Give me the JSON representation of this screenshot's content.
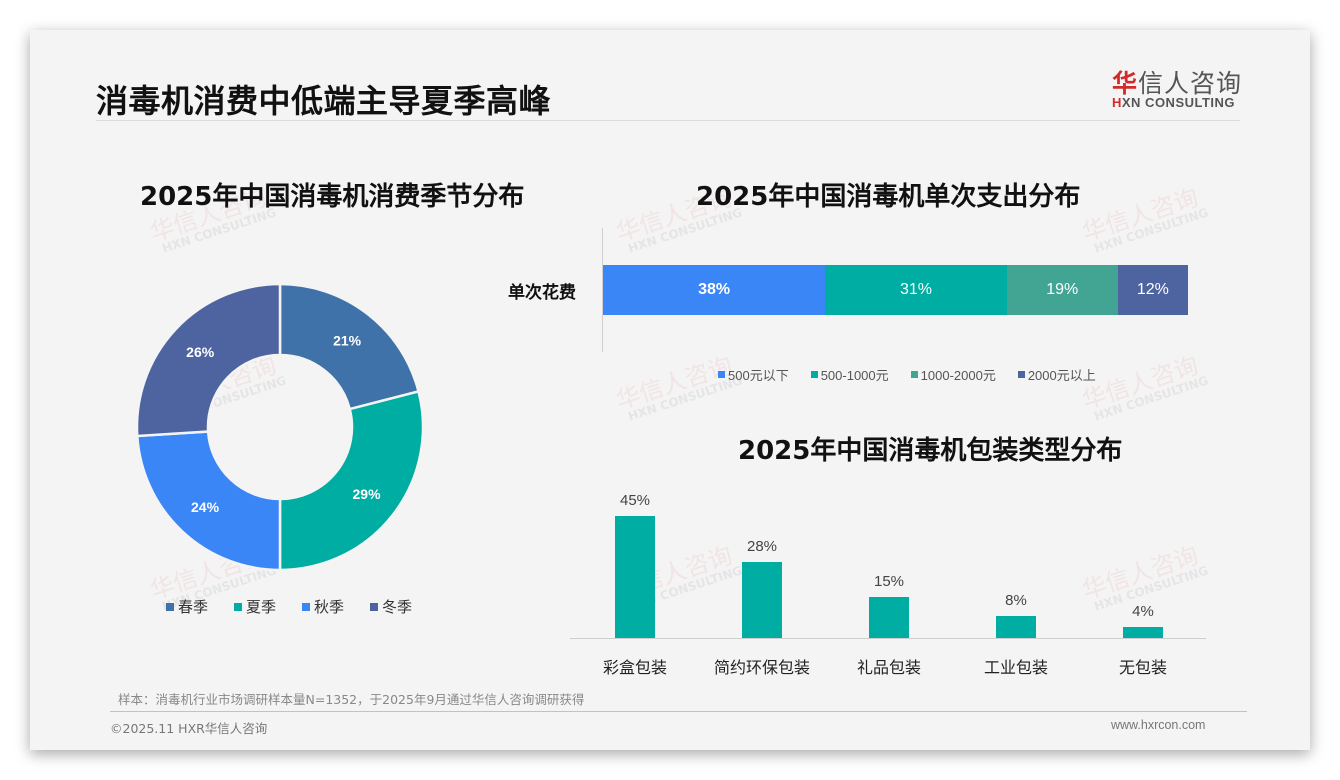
{
  "header": {
    "page_title": "消毒机消费中低端主导夏季高峰",
    "logo_cn_accent": "华",
    "logo_cn_rest": "信人咨询",
    "logo_en_accent": "H",
    "logo_en_rest": "XN CONSULTING"
  },
  "watermark": {
    "cn": "华信人咨询",
    "en": "HXN CONSULTING"
  },
  "colors": {
    "spring": "#3f72a8",
    "summer": "#00ada3",
    "autumn": "#3b86f7",
    "winter": "#4e64a0",
    "spend_lt500": "#3b86f7",
    "spend_500_1000": "#00ada3",
    "spend_1000_2000": "#42a593",
    "spend_gt2000": "#4e64a0",
    "column": "#00ada3"
  },
  "chart_data": [
    {
      "type": "pie",
      "variant": "donut",
      "title": "2025年中国消毒机消费季节分布",
      "categories": [
        "春季",
        "夏季",
        "秋季",
        "冬季"
      ],
      "values": [
        21,
        29,
        24,
        26
      ],
      "labels": [
        "21%",
        "29%",
        "24%",
        "26%"
      ],
      "legend_position": "bottom"
    },
    {
      "type": "bar",
      "variant": "stacked-horizontal-100",
      "title": "2025年中国消毒机单次支出分布",
      "categories": [
        "单次花费"
      ],
      "series": [
        {
          "name": "500元以下",
          "values": [
            38
          ],
          "label": "38%"
        },
        {
          "name": "500-1000元",
          "values": [
            31
          ],
          "label": "31%"
        },
        {
          "name": "1000-2000元",
          "values": [
            19
          ],
          "label": "19%"
        },
        {
          "name": "2000元以上",
          "values": [
            12
          ],
          "label": "12%"
        }
      ],
      "legend_position": "bottom"
    },
    {
      "type": "bar",
      "title": "2025年中国消毒机包装类型分布",
      "categories": [
        "彩盒包装",
        "简约环保包装",
        "礼品包装",
        "工业包装",
        "无包装"
      ],
      "values": [
        45,
        28,
        15,
        8,
        4
      ],
      "labels": [
        "45%",
        "28%",
        "15%",
        "8%",
        "4%"
      ],
      "xlabel": "",
      "ylabel": "",
      "grid": false
    }
  ],
  "footer": {
    "note": "样本：消毒机行业市场调研样本量N=1352，于2025年9月通过华信人咨询调研获得",
    "copyright": "©2025.11 HXR华信人咨询",
    "website": "www.hxrcon.com"
  }
}
